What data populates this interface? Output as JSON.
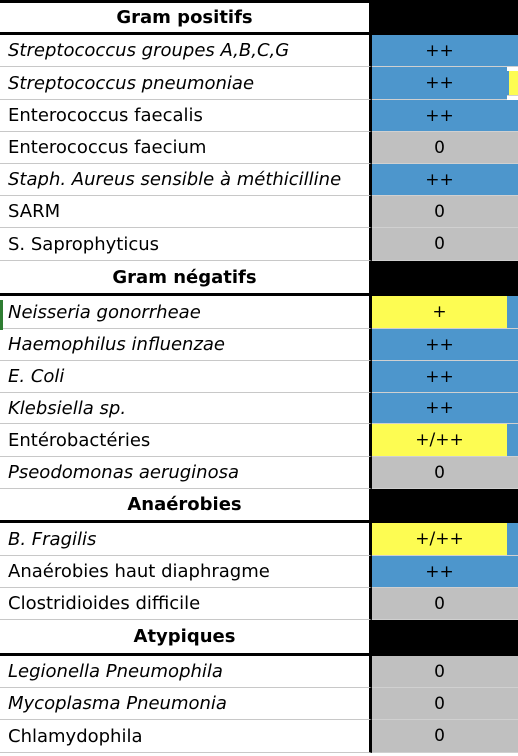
{
  "colors": {
    "blue": "#4d96cc",
    "grey": "#c0c0c0",
    "yellow": "#fdfc52",
    "black": "#000000"
  },
  "rows": [
    {
      "label": "Gram positifs",
      "header": true
    },
    {
      "label": "Streptococcus groupes A,B,C,G",
      "value": "++",
      "italic": true,
      "cell": "blue",
      "edge": "blue"
    },
    {
      "label": "Streptococcus pneumoniae",
      "value": "++",
      "italic": true,
      "cell": "blue",
      "edge": "yellow"
    },
    {
      "label": "Enterococcus faecalis",
      "value": "++",
      "italic": false,
      "cell": "blue",
      "edge": "blue"
    },
    {
      "label": "Enterococcus faecium",
      "value": "0",
      "italic": false,
      "cell": "grey",
      "edge": "grey"
    },
    {
      "label": "Staph. Aureus sensible à méthicilline",
      "value": "++",
      "italic": true,
      "cell": "blue",
      "edge": "blue"
    },
    {
      "label": "SARM",
      "value": "0",
      "italic": false,
      "cell": "grey",
      "edge": "grey"
    },
    {
      "label": "S. Saprophyticus",
      "value": "0",
      "italic": false,
      "cell": "grey",
      "edge": "grey"
    },
    {
      "label": "Gram négatifs",
      "header": true
    },
    {
      "label": "Neisseria gonorrheae",
      "value": "+",
      "italic": true,
      "cell": "yellow",
      "edge": "blue"
    },
    {
      "label": "Haemophilus influenzae",
      "value": "++",
      "italic": true,
      "cell": "blue",
      "edge": "blue"
    },
    {
      "label": "E. Coli",
      "value": "++",
      "italic": true,
      "cell": "blue",
      "edge": "blue"
    },
    {
      "label": "Klebsiella sp.",
      "value": "++",
      "italic": true,
      "cell": "blue",
      "edge": "blue"
    },
    {
      "label": "Entérobactéries",
      "value": "+/++",
      "italic": false,
      "cell": "yellow",
      "edge": "blue"
    },
    {
      "label": "Pseodomonas aeruginosa",
      "value": "0",
      "italic": true,
      "cell": "grey",
      "edge": "grey"
    },
    {
      "label": "Anaérobies",
      "header": true
    },
    {
      "label": "B. Fragilis",
      "value": "+/++",
      "italic": true,
      "cell": "yellow",
      "edge": "blue"
    },
    {
      "label": "Anaérobies haut diaphragme",
      "value": "++",
      "italic": false,
      "cell": "blue",
      "edge": "blue"
    },
    {
      "label": "Clostridioides difficile",
      "value": "0",
      "italic": false,
      "cell": "grey",
      "edge": "grey"
    },
    {
      "label": "Atypiques",
      "header": true
    },
    {
      "label": "Legionella Pneumophila",
      "value": "0",
      "italic": true,
      "cell": "grey",
      "edge": "grey"
    },
    {
      "label": "Mycoplasma Pneumonia",
      "value": "0",
      "italic": true,
      "cell": "grey",
      "edge": "grey"
    },
    {
      "label": "Chlamydophila",
      "value": "0",
      "italic": false,
      "cell": "grey",
      "edge": "grey"
    }
  ]
}
